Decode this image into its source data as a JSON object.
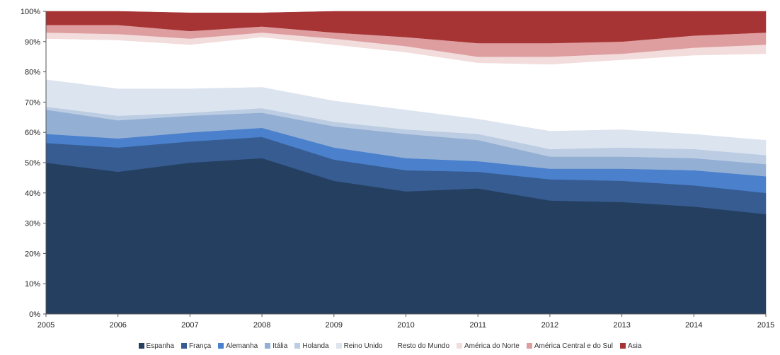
{
  "chart_data": {
    "type": "area",
    "stacked": true,
    "x": [
      2005,
      2006,
      2007,
      2008,
      2009,
      2010,
      2011,
      2012,
      2013,
      2014,
      2015
    ],
    "ylim": [
      0,
      100
    ],
    "yticks": [
      "0%",
      "10%",
      "20%",
      "30%",
      "40%",
      "50%",
      "60%",
      "70%",
      "80%",
      "90%",
      "100%"
    ],
    "grid": false,
    "legend_position": "bottom",
    "series": [
      {
        "name": "Espanha",
        "color": "#253f61",
        "values": [
          50,
          47,
          50,
          51.5,
          44,
          40.5,
          41.5,
          37.5,
          37,
          35.5,
          33
        ]
      },
      {
        "name": "França",
        "color": "#365c91",
        "values": [
          6.5,
          8,
          7,
          7,
          7,
          7,
          5.5,
          7,
          7,
          7,
          7
        ]
      },
      {
        "name": "Alemanha",
        "color": "#4a80cc",
        "values": [
          3,
          3,
          3,
          3,
          4,
          4,
          3.5,
          3.5,
          4,
          5,
          5.5
        ]
      },
      {
        "name": "Itália",
        "color": "#93afd4",
        "values": [
          8,
          6,
          5.5,
          5,
          7,
          8,
          7,
          4,
          4,
          4,
          4
        ]
      },
      {
        "name": "Holanda",
        "color": "#bccce2",
        "values": [
          1,
          1.5,
          1,
          1.5,
          1.5,
          1.5,
          2,
          2.5,
          3,
          3,
          3
        ]
      },
      {
        "name": "Reino Unido",
        "color": "#dce4ef",
        "values": [
          9,
          9,
          8,
          7,
          7,
          6.5,
          5,
          6,
          6,
          5,
          5
        ]
      },
      {
        "name": "Resto do Mundo",
        "color": "#ffffff",
        "values": [
          13.5,
          16,
          14.5,
          16.5,
          18.5,
          19,
          18.5,
          22,
          23,
          26,
          28.5
        ]
      },
      {
        "name": "América do Norte",
        "color": "#f3dcdc",
        "values": [
          2,
          2,
          2,
          1.5,
          2,
          2,
          2,
          2.5,
          2,
          2.5,
          3
        ]
      },
      {
        "name": "América Central e do Sul",
        "color": "#de9ea0",
        "values": [
          2.5,
          3,
          2.5,
          2,
          2,
          3,
          4.5,
          4.5,
          4,
          4,
          4
        ]
      },
      {
        "name": "Asia",
        "color": "#a63434",
        "values": [
          4.5,
          4.5,
          6,
          4.5,
          7,
          8.5,
          10.5,
          10.5,
          10,
          8,
          7
        ]
      }
    ]
  }
}
